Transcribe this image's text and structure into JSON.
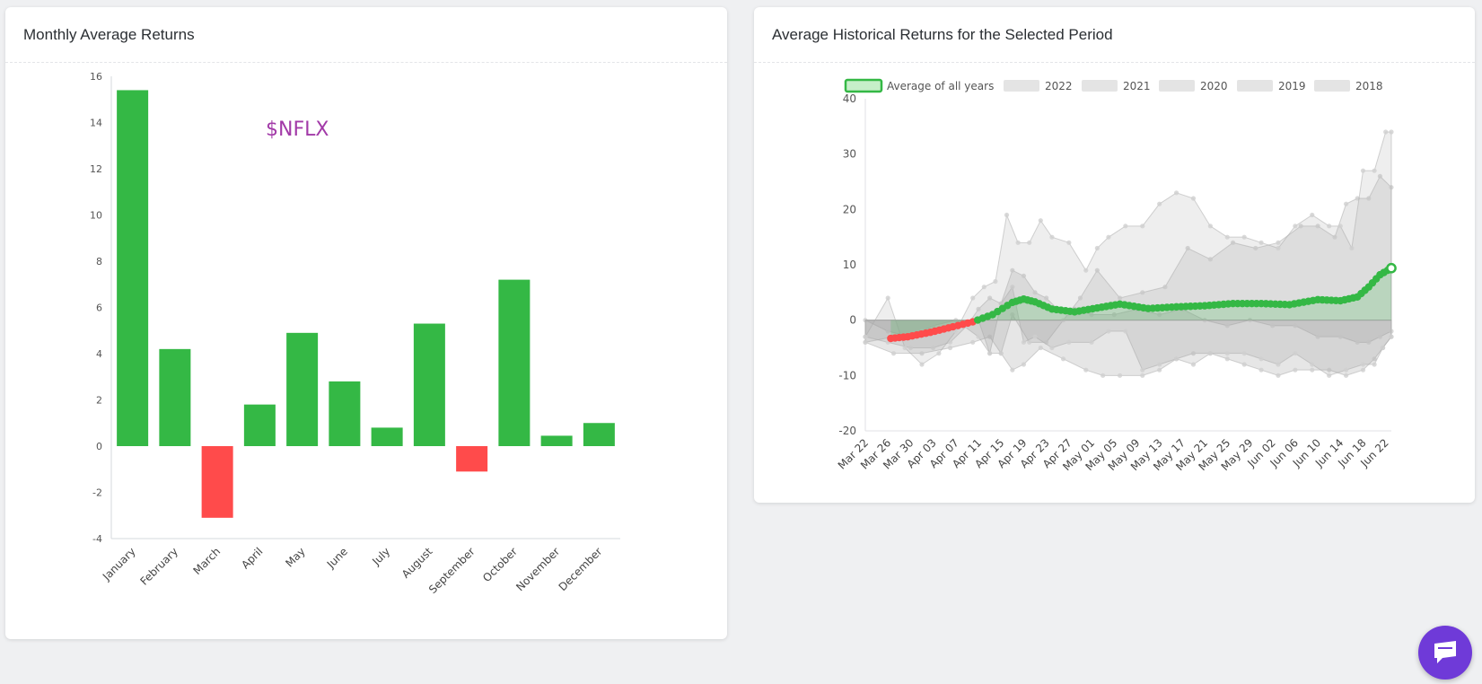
{
  "left_card": {
    "title": "Monthly Average Returns",
    "ticker": "$NFLX"
  },
  "right_card": {
    "title": "Average Historical Returns for the Selected Period"
  },
  "chat": {
    "icon": "chat-icon"
  },
  "colors": {
    "positive": "#34b845",
    "negative": "#ff4b4b",
    "ticker": "#a23aa8",
    "band": "#9a9a9a",
    "chat": "#6f3ad8"
  },
  "chart_data": [
    {
      "type": "bar",
      "title": "Monthly Average Returns",
      "categories": [
        "January",
        "February",
        "March",
        "April",
        "May",
        "June",
        "July",
        "August",
        "September",
        "October",
        "November",
        "December"
      ],
      "values": [
        15.4,
        4.2,
        -3.1,
        1.8,
        4.9,
        2.8,
        0.8,
        5.3,
        -1.1,
        7.2,
        0.45,
        1.0
      ],
      "ylim": [
        -4,
        16
      ],
      "yticks": [
        -4,
        -2,
        0,
        2,
        4,
        6,
        8,
        10,
        12,
        14,
        16
      ],
      "annotation": "$NFLX"
    },
    {
      "type": "line",
      "title": "Average Historical Returns for the Selected Period",
      "x_labels": [
        "Mar 22",
        "Mar 26",
        "Mar 30",
        "Apr 03",
        "Apr 07",
        "Apr 11",
        "Apr 15",
        "Apr 19",
        "Apr 23",
        "Apr 27",
        "May 01",
        "May 05",
        "May 09",
        "May 13",
        "May 17",
        "May 21",
        "May 25",
        "May 29",
        "Jun 02",
        "Jun 06",
        "Jun 10",
        "Jun 14",
        "Jun 18",
        "Jun 22"
      ],
      "ylim": [
        -20,
        40
      ],
      "yticks": [
        -20,
        -10,
        0,
        10,
        20,
        30,
        40
      ],
      "legend": [
        "Average of all years",
        "2022",
        "2021",
        "2020",
        "2019",
        "2018"
      ],
      "average": {
        "name": "Average of all years",
        "x": [
          9,
          15,
          23,
          31,
          38,
          45,
          52,
          56,
          60,
          66,
          74,
          82,
          90,
          100,
          110,
          120,
          130,
          140,
          150,
          160,
          168,
          174,
          178,
          182,
          186
        ],
        "y": [
          -3.3,
          -3.0,
          -2.2,
          -1.2,
          -0.3,
          1.0,
          3.2,
          3.8,
          3.3,
          2.0,
          1.5,
          2.2,
          2.9,
          2.1,
          2.4,
          2.6,
          3.0,
          3.0,
          2.8,
          3.7,
          3.5,
          4.2,
          6.0,
          8.2,
          9.4
        ]
      },
      "series": [
        {
          "name": "2022",
          "x": [
            0,
            10,
            20,
            30,
            38,
            44,
            48,
            52,
            56,
            62,
            70,
            78,
            84,
            90,
            98,
            104,
            110,
            116,
            122,
            128,
            134,
            140,
            146,
            152,
            158,
            164,
            170,
            176,
            180,
            183,
            186
          ],
          "y": [
            -4,
            -6,
            -6,
            -5,
            -4,
            -3,
            -6,
            -9,
            -8,
            -5,
            -7,
            -9,
            -10,
            -10,
            -10,
            -9,
            -7,
            -6,
            -6,
            -7,
            -8,
            -9,
            -10,
            -9,
            -9,
            -9,
            -10,
            -9,
            -7,
            -5,
            -3
          ]
        },
        {
          "name": "2021",
          "x": [
            0,
            8,
            16,
            24,
            32,
            40,
            44,
            48,
            52,
            56,
            60,
            64,
            68,
            74,
            80,
            88,
            96,
            104,
            112,
            120,
            128,
            136,
            144,
            152,
            160,
            168,
            174,
            178,
            182,
            186
          ],
          "y": [
            0,
            -2,
            -3,
            -1,
            0,
            -3,
            -6,
            3,
            9,
            8,
            5,
            4,
            2,
            2,
            1,
            1,
            2,
            1,
            2,
            0,
            -1,
            0,
            -1,
            -1,
            -3,
            -3,
            -4,
            -4,
            -3,
            -2
          ]
        },
        {
          "name": "2020",
          "x": [
            0,
            10,
            20,
            30,
            40,
            44,
            48,
            52,
            58,
            64,
            70,
            76,
            82,
            90,
            98,
            106,
            114,
            122,
            130,
            138,
            146,
            154,
            160,
            166,
            170,
            174,
            178,
            182,
            186
          ],
          "y": [
            -4,
            -3,
            -2,
            -1,
            0,
            -6,
            -6,
            1,
            -4,
            -4,
            0,
            4,
            9,
            4,
            5,
            6,
            13,
            11,
            14,
            13,
            14,
            17,
            17,
            15,
            21,
            22,
            22,
            26,
            24
          ]
        },
        {
          "name": "2019",
          "x": [
            0,
            8,
            16,
            24,
            30,
            36,
            40,
            44,
            48,
            52,
            56,
            60,
            66,
            72,
            80,
            86,
            92,
            98,
            104,
            110,
            116,
            122,
            128,
            134,
            140,
            146,
            152,
            158,
            164,
            170,
            176,
            180,
            183,
            186
          ],
          "y": [
            -3,
            -4,
            -5,
            -5,
            -4,
            -1,
            2,
            4,
            3,
            6,
            -4,
            -3,
            -5,
            -4,
            -4,
            -2,
            -2,
            -9,
            -8,
            -7,
            -8,
            -6,
            -6,
            -6,
            -7,
            -8,
            -6,
            -8,
            -10,
            -9,
            -8,
            -8,
            -5,
            -3
          ]
        },
        {
          "name": "2018",
          "x": [
            0,
            8,
            14,
            20,
            26,
            32,
            38,
            42,
            46,
            50,
            54,
            58,
            62,
            66,
            72,
            78,
            82,
            86,
            92,
            98,
            104,
            110,
            116,
            122,
            128,
            134,
            140,
            146,
            152,
            158,
            164,
            168,
            172,
            176,
            180,
            184,
            186
          ],
          "y": [
            -3,
            4,
            -5,
            -8,
            -6,
            -2,
            4,
            6,
            7,
            19,
            14,
            14,
            18,
            15,
            14,
            9,
            13,
            15,
            17,
            17,
            21,
            23,
            22,
            17,
            15,
            15,
            14,
            13,
            17,
            19,
            17,
            17,
            13,
            27,
            27,
            34,
            34
          ]
        }
      ]
    }
  ]
}
